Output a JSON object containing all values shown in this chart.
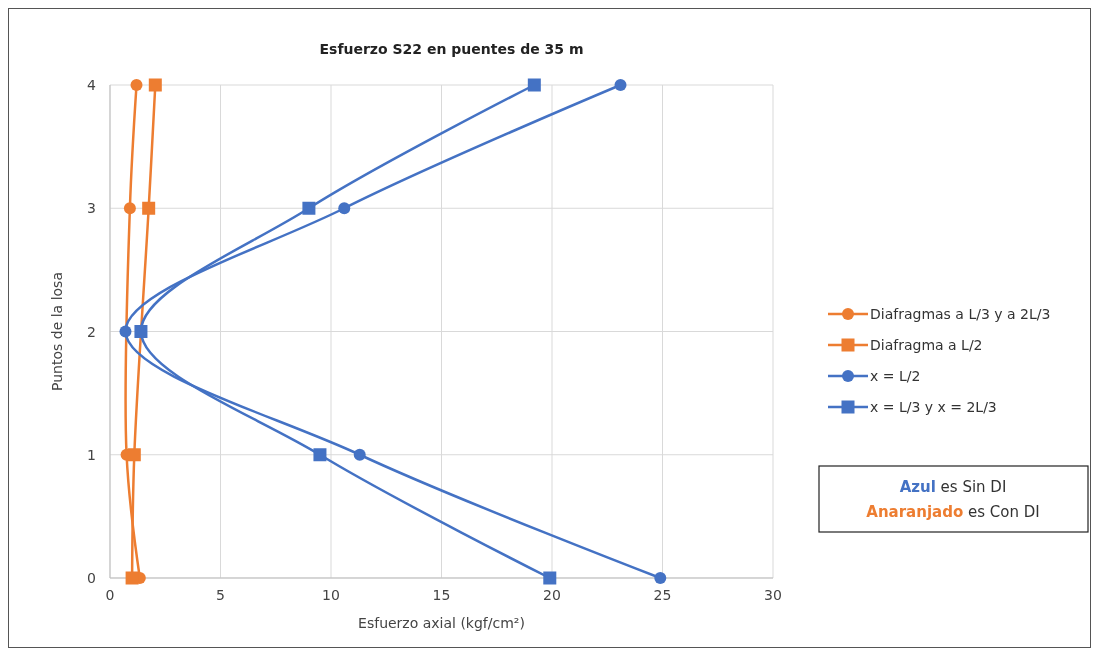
{
  "chart_data": {
    "type": "line",
    "title": "Esfuerzo S22 en puentes de 35 m",
    "xlabel": "Esfuerzo axial (kgf/cm²)",
    "ylabel": "Puntos de la losa",
    "xlim": [
      0,
      30
    ],
    "xticks": [
      0,
      5,
      10,
      15,
      20,
      25,
      30
    ],
    "ylim": [
      0,
      4
    ],
    "yticks": [
      0,
      1,
      2,
      3,
      4
    ],
    "grid": true,
    "legend": "right",
    "line_style": "solid",
    "series": [
      {
        "name": "Diafragmas a L/3 y a 2L/3",
        "color": "#ed7d31",
        "marker": "circle",
        "x": [
          1.35,
          0.75,
          null,
          0.9,
          1.2
        ],
        "values": [
          0,
          1,
          null,
          3,
          4
        ]
      },
      {
        "name": "Diafragma a L/2",
        "color": "#ed7d31",
        "marker": "square",
        "x": [
          1.0,
          1.1,
          null,
          1.75,
          2.05
        ],
        "values": [
          0,
          1,
          null,
          3,
          4
        ]
      },
      {
        "name": "x = L/2",
        "color": "#4472c4",
        "marker": "circle",
        "x": [
          24.9,
          11.3,
          0.7,
          10.6,
          23.1
        ],
        "values": [
          0,
          1,
          2,
          3,
          4
        ]
      },
      {
        "name": "x = L/3 y x = 2L/3",
        "color": "#4472c4",
        "marker": "square",
        "x": [
          19.9,
          9.5,
          1.4,
          9.0,
          19.2
        ],
        "values": [
          0,
          1,
          2,
          3,
          4
        ]
      }
    ],
    "annotations": [
      "Azul es Sin DI",
      "Anaranjado es Con DI"
    ]
  }
}
